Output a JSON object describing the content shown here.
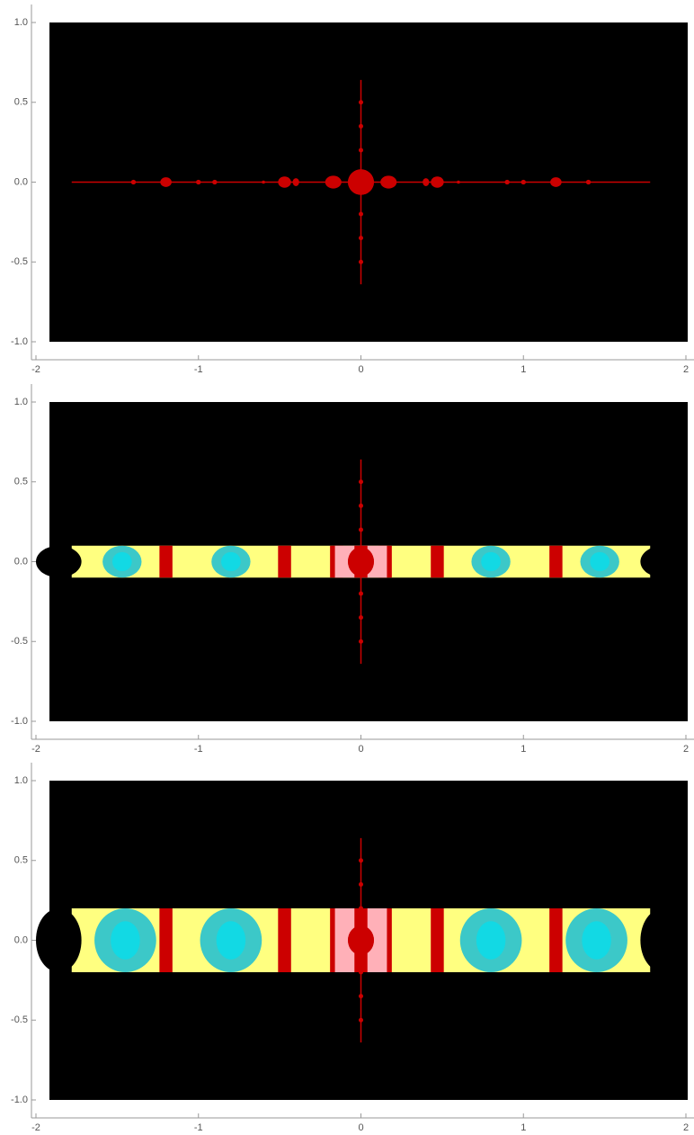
{
  "chart_data": [
    {
      "type": "fractal",
      "xlim": [
        -2,
        2
      ],
      "ylim": [
        -1,
        1
      ],
      "xticks": [
        -2,
        -1,
        0,
        1,
        2
      ],
      "yticks": [
        {
          "value": 1,
          "label": "1.0"
        },
        {
          "value": 0.5,
          "label": "0.5"
        },
        {
          "value": 0,
          "label": "0.0"
        },
        {
          "value": -0.5,
          "label": "-0.5"
        },
        {
          "value": -1,
          "label": "-1.0"
        }
      ]
    },
    {
      "type": "fractal",
      "xlim": [
        -2,
        2
      ],
      "ylim": [
        -1,
        1
      ],
      "xticks": [
        -2,
        -1,
        0,
        1,
        2
      ],
      "yticks": [
        {
          "value": 1,
          "label": "1.0"
        },
        {
          "value": 0.5,
          "label": "0.5"
        },
        {
          "value": 0,
          "label": "0.0"
        },
        {
          "value": -0.5,
          "label": "-0.5"
        },
        {
          "value": -1,
          "label": "-1.0"
        }
      ]
    },
    {
      "type": "fractal",
      "xlim": [
        -2,
        2
      ],
      "ylim": [
        -1,
        1
      ],
      "xticks": [
        -2,
        -1,
        0,
        1,
        2
      ],
      "yticks": [
        {
          "value": 1,
          "label": "1.0"
        },
        {
          "value": 0.5,
          "label": "0.5"
        },
        {
          "value": 0,
          "label": "0.0"
        },
        {
          "value": -0.5,
          "label": "-0.5"
        },
        {
          "value": -1,
          "label": "-1.0"
        }
      ]
    }
  ]
}
